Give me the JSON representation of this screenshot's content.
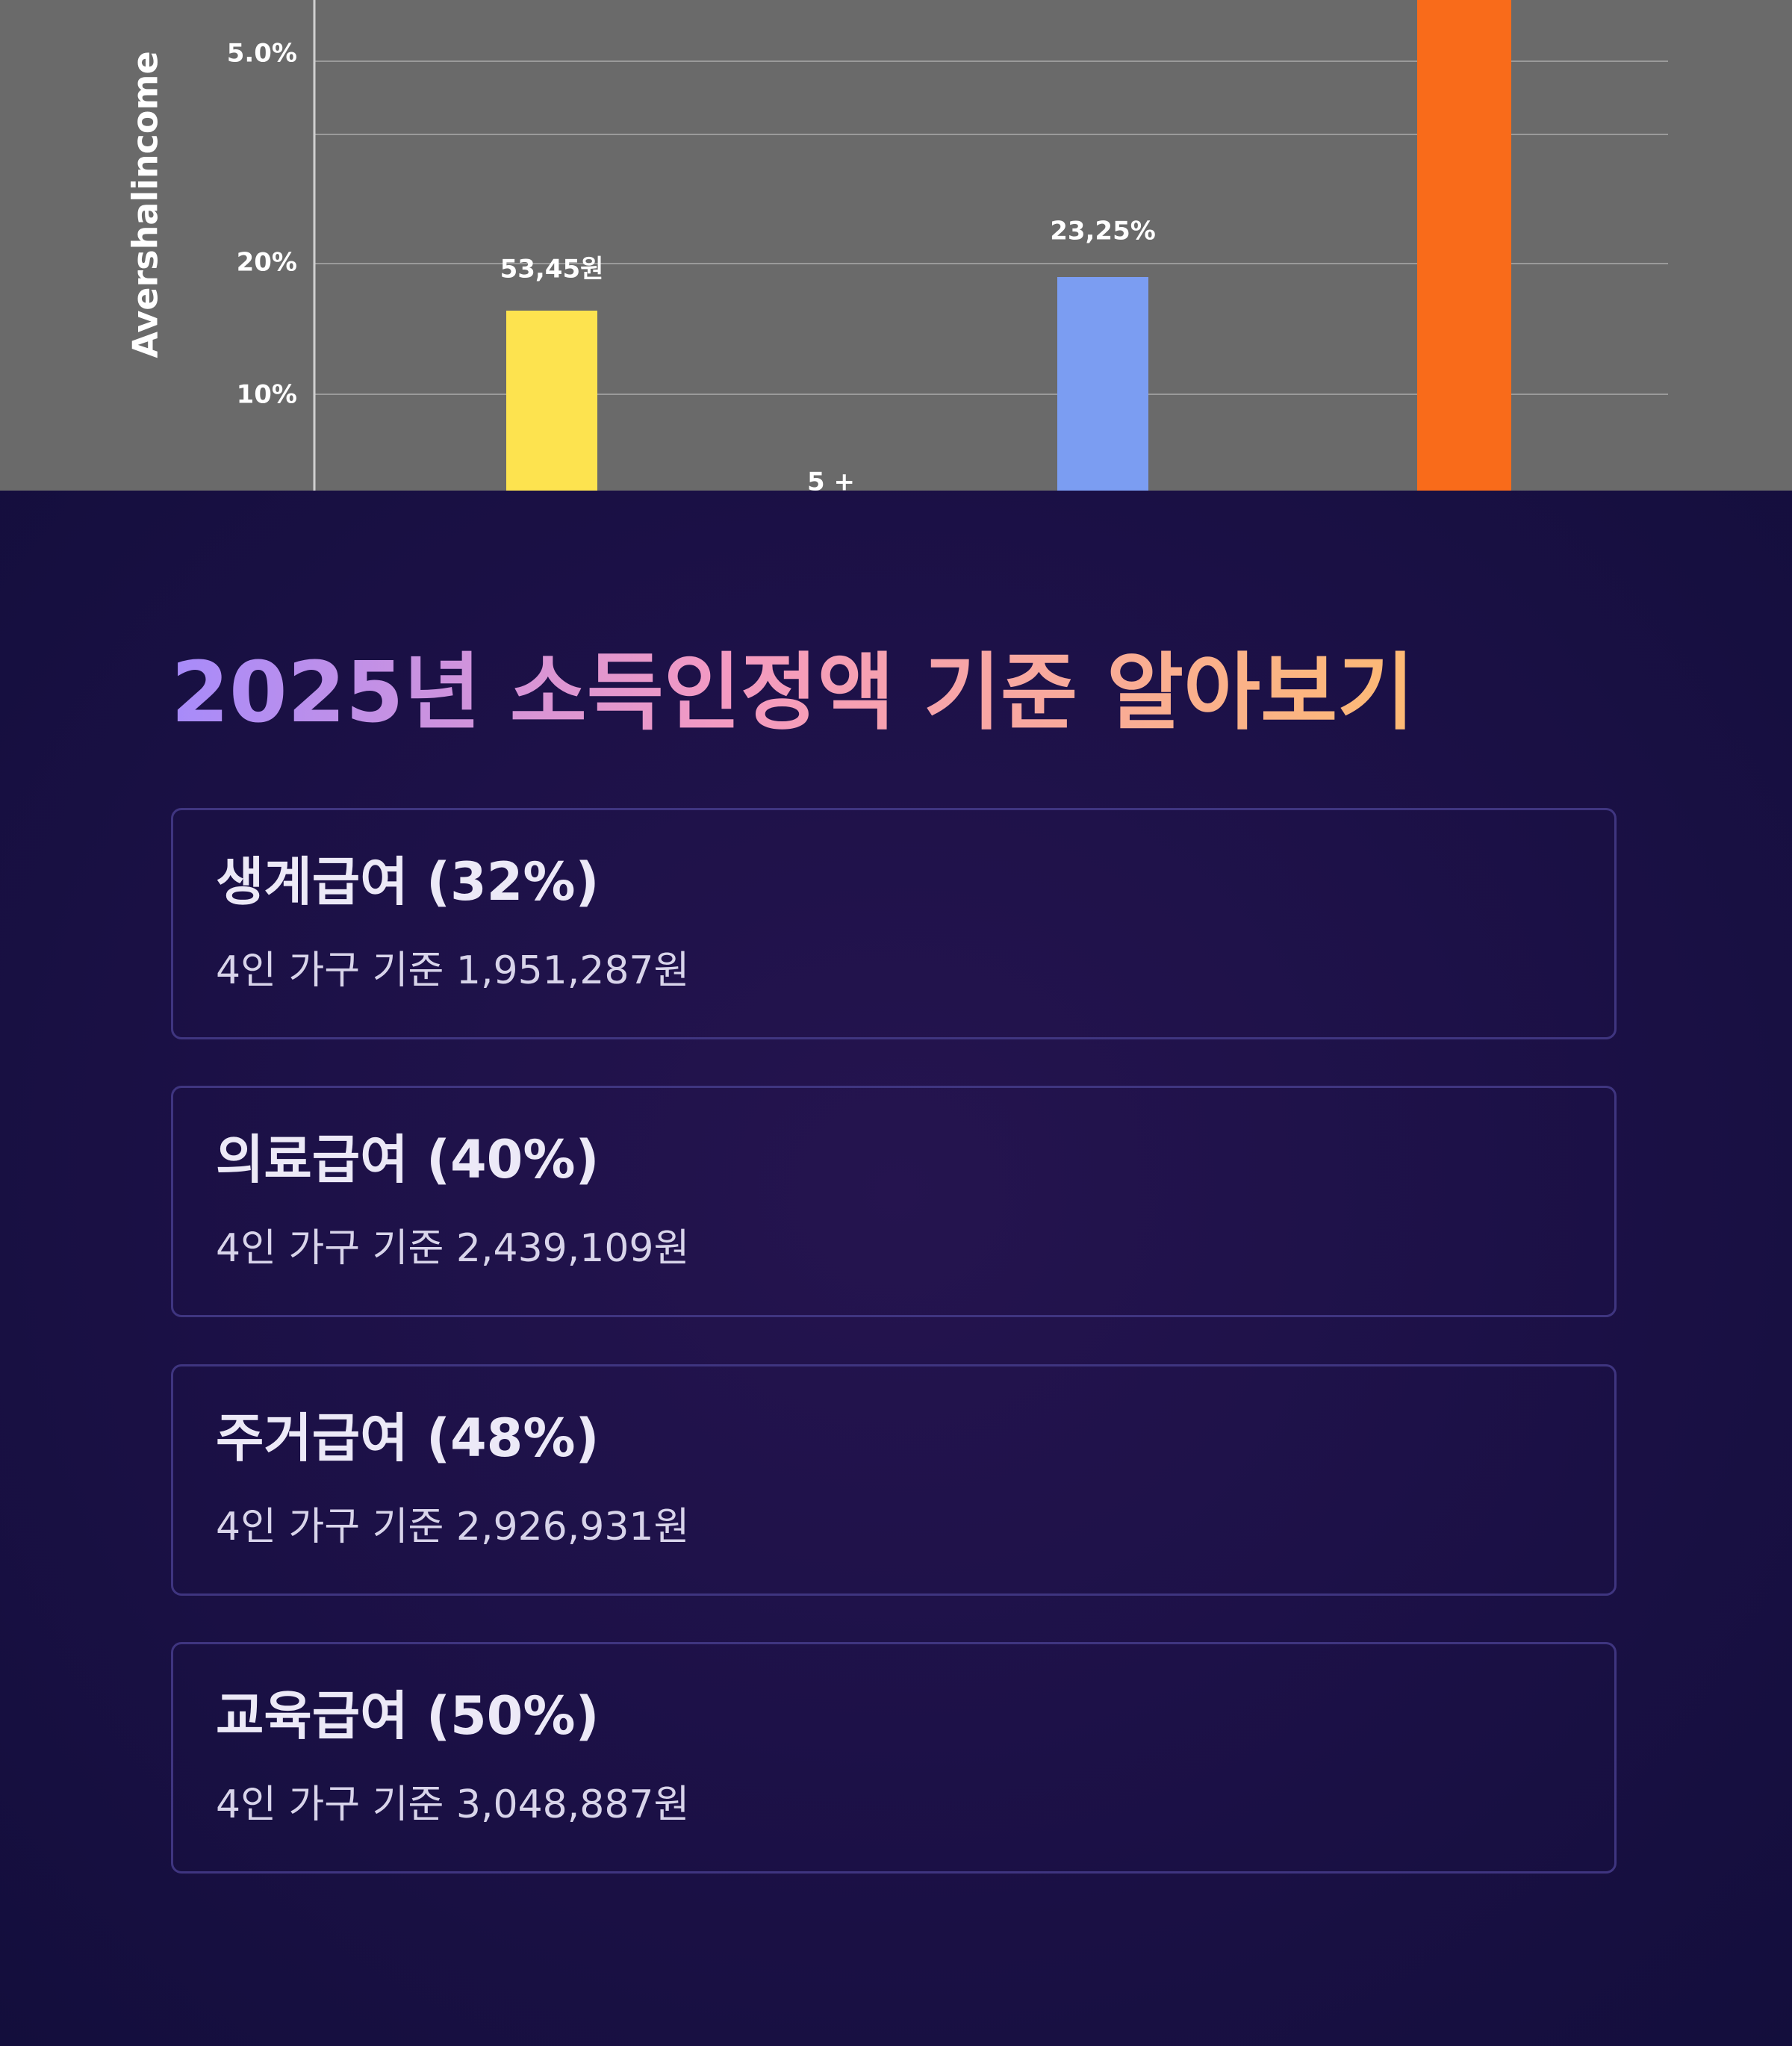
{
  "hero_image": {
    "axis_label": "Avershalincome",
    "ticks": [
      "5.0%",
      "20%",
      "10%"
    ],
    "labels": [
      "53,45원",
      "5 +",
      "23,25%"
    ]
  },
  "section": {
    "title": "2025년 소득인정액 기준 알아보기",
    "cards": [
      {
        "title": "생계급여 (32%)",
        "detail": "4인 가구 기준 1,951,287원"
      },
      {
        "title": "의료급여 (40%)",
        "detail": "4인 가구 기준 2,439,109원"
      },
      {
        "title": "주거급여 (48%)",
        "detail": "4인 가구 기준 2,926,931원"
      },
      {
        "title": "교육급여 (50%)",
        "detail": "4인 가구 기준 3,048,887원"
      }
    ]
  }
}
